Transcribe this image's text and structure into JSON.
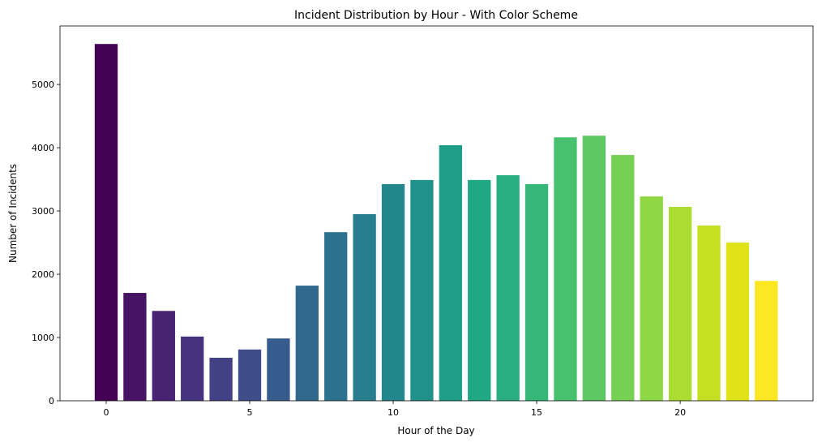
{
  "chart_data": {
    "type": "bar",
    "title": "Incident Distribution by Hour - With Color Scheme",
    "xlabel": "Hour of the Day",
    "ylabel": "Number of Incidents",
    "x": [
      0,
      1,
      2,
      3,
      4,
      5,
      6,
      7,
      8,
      9,
      10,
      11,
      12,
      13,
      14,
      15,
      16,
      17,
      18,
      19,
      20,
      21,
      22,
      23
    ],
    "values": [
      5640,
      1705,
      1420,
      1015,
      680,
      810,
      985,
      1820,
      2665,
      2950,
      3425,
      3490,
      4040,
      3490,
      3565,
      3425,
      4165,
      4190,
      3885,
      3230,
      3065,
      2770,
      2500,
      1895
    ],
    "colors": [
      "#440154",
      "#471365",
      "#482374",
      "#46337f",
      "#424186",
      "#3d4e8a",
      "#375b8d",
      "#31688e",
      "#2c728e",
      "#287d8e",
      "#24878e",
      "#21918c",
      "#1f9e89",
      "#20a784",
      "#28ae80",
      "#35b779",
      "#48c16e",
      "#5ec962",
      "#75d054",
      "#8fd744",
      "#aadc32",
      "#c5e021",
      "#dfe318",
      "#fde725"
    ],
    "xticks": [
      "0",
      "5",
      "10",
      "15",
      "20"
    ],
    "yticks": [
      "0",
      "1000",
      "2000",
      "3000",
      "4000",
      "5000"
    ],
    "xlim": [
      -1.61,
      24.63
    ],
    "ylim": [
      0,
      5925
    ],
    "grid": false
  }
}
